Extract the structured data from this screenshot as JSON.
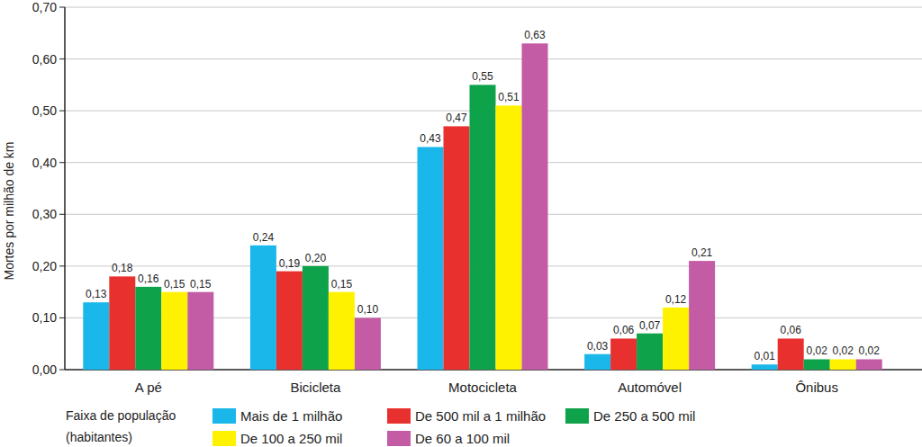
{
  "chart_data": {
    "type": "bar",
    "y_label": "Mortes por milhão de km",
    "categories": [
      "A pé",
      "Bicicleta",
      "Motocicleta",
      "Automóvel",
      "Ônibus"
    ],
    "legend_title": [
      "Faixa de população",
      "(habitantes)"
    ],
    "series": [
      {
        "name": "Mais de 1 milhão",
        "color": "#1ab7ea",
        "values": [
          0.13,
          0.24,
          0.43,
          0.03,
          0.01
        ],
        "value_labels": [
          "0,13",
          "0,24",
          "0,43",
          "0,03",
          "0,01"
        ]
      },
      {
        "name": "De 500 mil a 1 milhão",
        "color": "#e8302f",
        "values": [
          0.18,
          0.19,
          0.47,
          0.06,
          0.06
        ],
        "value_labels": [
          "0,18",
          "0,19",
          "0,47",
          "0,06",
          "0,06"
        ]
      },
      {
        "name": "De 250 a 500 mil",
        "color": "#0ea34a",
        "values": [
          0.16,
          0.2,
          0.55,
          0.07,
          0.02
        ],
        "value_labels": [
          "0,16",
          "0,20",
          "0,55",
          "0,07",
          "0,02"
        ]
      },
      {
        "name": "De 100 a 250 mil",
        "color": "#fff200",
        "values": [
          0.15,
          0.15,
          0.51,
          0.12,
          0.02
        ],
        "value_labels": [
          "0,15",
          "0,15",
          "0,51",
          "0,12",
          "0,02"
        ]
      },
      {
        "name": "De 60 a 100 mil",
        "color": "#c45ba5",
        "values": [
          0.15,
          0.1,
          0.63,
          0.21,
          0.02
        ],
        "value_labels": [
          "0,15",
          "0,10",
          "0,63",
          "0,21",
          "0,02"
        ]
      }
    ],
    "ylim": [
      0,
      0.7
    ],
    "yticks": [
      {
        "value": 0,
        "label": "0,00"
      },
      {
        "value": 0.1,
        "label": "0,10"
      },
      {
        "value": 0.2,
        "label": "0,20"
      },
      {
        "value": 0.3,
        "label": "0,30"
      },
      {
        "value": 0.4,
        "label": "0,40"
      },
      {
        "value": 0.5,
        "label": "0,50"
      },
      {
        "value": 0.6,
        "label": "0,60"
      },
      {
        "value": 0.7,
        "label": "0,70"
      }
    ],
    "grid": true,
    "legend": "bottom",
    "data_labels": true
  }
}
